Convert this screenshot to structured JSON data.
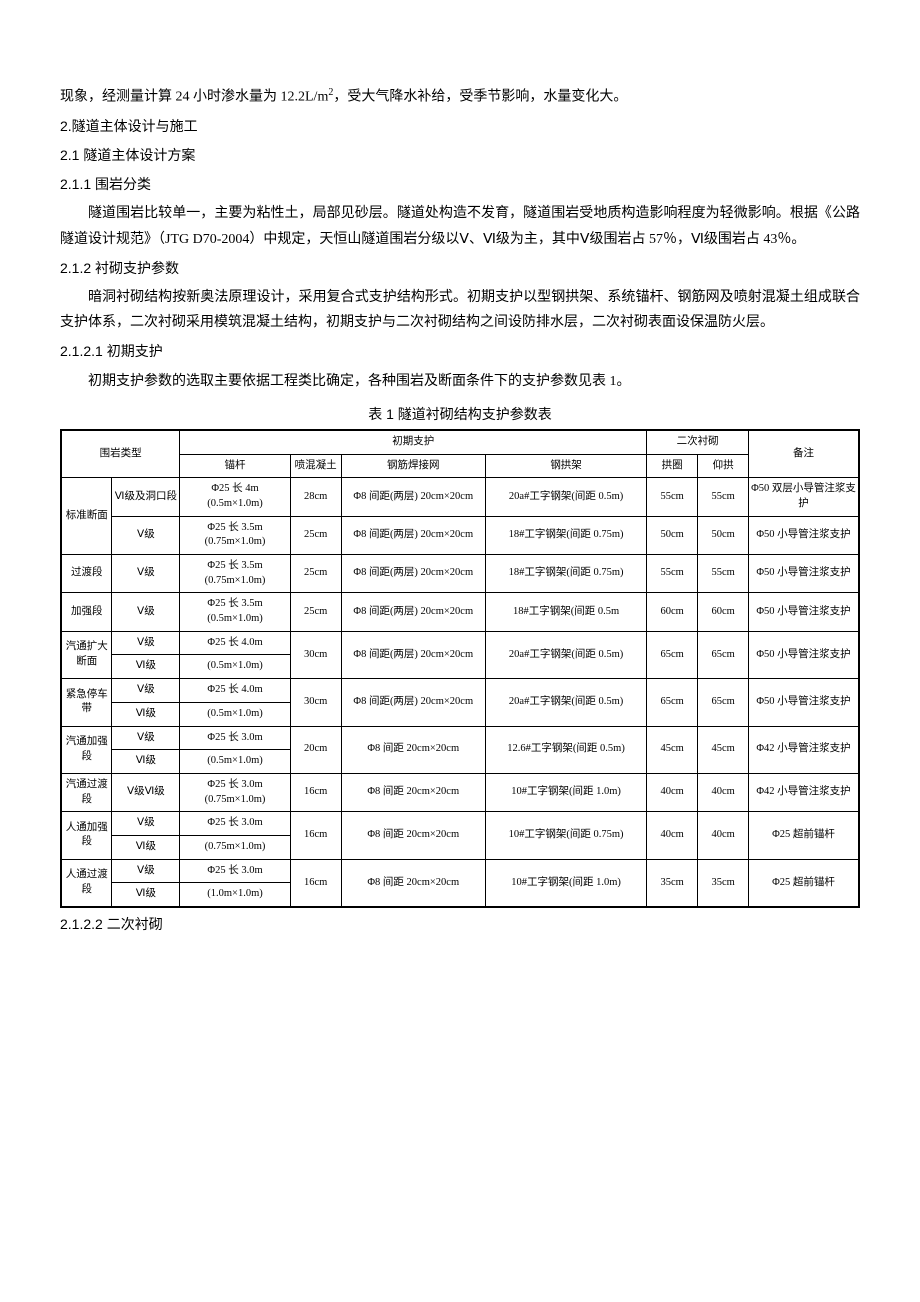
{
  "p1_a": "现象，经测量计算 24 小时渗水量为 12.2L/m",
  "p1_sup": "2",
  "p1_b": "，受大气降水补给，受季节影响，水量变化大。",
  "h1": "2.隧道主体设计与施工",
  "h2": "2.1 隧道主体设计方案",
  "h3": "2.1.1 围岩分类",
  "p2": "隧道围岩比较单一，主要为粘性土，局部见砂层。隧道处构造不发育，隧道围岩受地质构造影响程度为轻微影响。根据《公路隧道设计规范》（JTG D70-2004）中规定，天恒山隧道围岩分级以Ⅴ、Ⅵ级为主，其中Ⅴ级围岩占 57％，Ⅵ级围岩占 43％。",
  "h4": "2.1.2 衬砌支护参数",
  "p3": "暗洞衬砌结构按新奥法原理设计，采用复合式支护结构形式。初期支护以型钢拱架、系统锚杆、钢筋网及喷射混凝土组成联合支护体系，二次衬砌采用模筑混凝土结构，初期支护与二次衬砌结构之间设防排水层，二次衬砌表面设保温防火层。",
  "h5": "2.1.2.1 初期支护",
  "p4": "初期支护参数的选取主要依据工程类比确定，各种围岩及断面条件下的支护参数见表 1。",
  "caption": "表 1 隧道衬砌结构支护参数表",
  "head": {
    "rt": "围岩类型",
    "is": "初期支护",
    "s1": "锚杆",
    "s2": "喷混凝土",
    "s3": "钢筋焊接网",
    "s4": "钢拱架",
    "sl": "二次衬砌",
    "q1": "拱圈",
    "q2": "仰拱",
    "rm": "备注"
  },
  "rows": [
    {
      "a1": "标准断面",
      "a1ext": "(rs3)",
      "a2": "Ⅵ级及洞口段",
      "b": "Φ25 长 4m (0.5m×1.0m)",
      "c": "28cm",
      "d": "Φ8 间距(两层) 20cm×20cm",
      "e": "20a#工字钢架(间距 0.5m)",
      "f": "55cm",
      "g": "55cm",
      "h": "Φ50 双层小导管注浆支护"
    },
    {
      "a2": "Ⅴ级",
      "b": "Φ25 长 3.5m (0.75m×1.0m)",
      "c": "25cm",
      "d": "Φ8 间距(两层) 20cm×20cm",
      "e": "18#工字钢架(间距 0.75m)",
      "f": "50cm",
      "g": "50cm",
      "h": "Φ50 小导管注浆支护"
    },
    {
      "a1": "过渡段",
      "a2": "Ⅴ级",
      "b": "Φ25 长 3.5m (0.75m×1.0m)",
      "c": "25cm",
      "d": "Φ8 间距(两层) 20cm×20cm",
      "e": "18#工字钢架(间距 0.75m)",
      "f": "55cm",
      "g": "55cm",
      "h": "Φ50 小导管注浆支护"
    },
    {
      "a1": "加强段",
      "a2": "Ⅴ级",
      "b": "Φ25 长 3.5m (0.5m×1.0m)",
      "c": "25cm",
      "d": "Φ8 间距(两层) 20cm×20cm",
      "e": "18#工字钢架(间距 0.5m",
      "f": "60cm",
      "g": "60cm",
      "h": "Φ50 小导管注浆支护"
    },
    {
      "a1": "汽通扩大断面",
      "a2": "Ⅴ级",
      "a2b": "Ⅵ级",
      "b": "Φ25 长 4.0m",
      "bb": "(0.5m×1.0m)",
      "c": "30cm",
      "d": "Φ8 间距(两层) 20cm×20cm",
      "e": "20a#工字钢架(间距 0.5m)",
      "f": "65cm",
      "g": "65cm",
      "h": "Φ50 小导管注浆支护"
    },
    {
      "a1": "紧急停车带",
      "a2": "Ⅴ级",
      "a2b": "Ⅵ级",
      "b": "Φ25 长 4.0m",
      "bb": "(0.5m×1.0m)",
      "c": "30cm",
      "d": "Φ8 间距(两层) 20cm×20cm",
      "e": "20a#工字钢架(间距 0.5m)",
      "f": "65cm",
      "g": "65cm",
      "h": "Φ50 小导管注浆支护"
    },
    {
      "a1": "汽通加强段",
      "a2": "Ⅴ级",
      "a2b": "Ⅵ级",
      "b": "Φ25 长 3.0m",
      "bb": "(0.5m×1.0m)",
      "c": "20cm",
      "d": "Φ8 间距 20cm×20cm",
      "e": "12.6#工字钢架(间距 0.5m)",
      "f": "45cm",
      "g": "45cm",
      "h": "Φ42 小导管注浆支护"
    },
    {
      "a1": "汽通过渡段",
      "a2": "Ⅴ级Ⅵ级",
      "b": "Φ25 长 3.0m (0.75m×1.0m)",
      "c": "16cm",
      "d": "Φ8 间距 20cm×20cm",
      "e": "10#工字钢架(间距 1.0m)",
      "f": "40cm",
      "g": "40cm",
      "h": "Φ42 小导管注浆支护"
    },
    {
      "a1": "人通加强段",
      "a2": "Ⅴ级",
      "a2b": "Ⅵ级",
      "b": "Φ25 长 3.0m",
      "bb": "(0.75m×1.0m)",
      "c": "16cm",
      "d": "Φ8 间距 20cm×20cm",
      "e": "10#工字钢架(间距 0.75m)",
      "f": "40cm",
      "g": "40cm",
      "h": "Φ25 超前锚杆"
    },
    {
      "a1": "人通过渡段",
      "a2": "Ⅴ级",
      "a2b": "Ⅵ级",
      "b": "Φ25 长 3.0m",
      "bb": "(1.0m×1.0m)",
      "c": "16cm",
      "d": "Φ8 间距 20cm×20cm",
      "e": "10#工字钢架(间距 1.0m)",
      "f": "35cm",
      "g": "35cm",
      "h": "Φ25 超前锚杆"
    }
  ],
  "h6": "2.1.2.2 二次衬砌"
}
